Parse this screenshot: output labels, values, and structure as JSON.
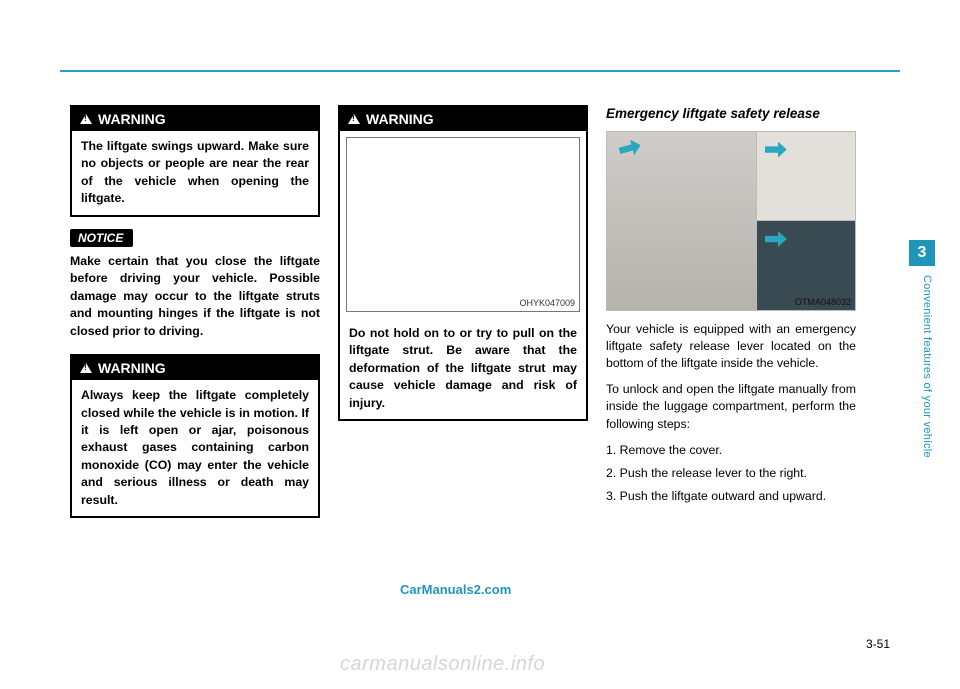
{
  "hr_color": "#29a0c4",
  "side_tab": {
    "number": "3",
    "bg": "#1f96b8"
  },
  "side_text": "Convenient features of your vehicle",
  "page_number": "3-51",
  "watermark1": "CarManuals2.com",
  "watermark2": "carmanualsonline.info",
  "col1": {
    "warning1": {
      "label": "WARNING",
      "text": "The liftgate swings upward. Make sure no objects or people are near the rear of the vehicle when opening the liftgate."
    },
    "notice_label": "NOTICE",
    "notice_text": "Make certain that you close the liftgate before driving your vehicle. Possible damage may occur to the  liftgate struts and mounting hinges if the liftgate  is not closed prior to driving.",
    "warning2": {
      "label": "WARNING",
      "text": "Always keep the liftgate completely closed while the vehicle is in motion. If it is left open or ajar, poisonous exhaust gases containing carbon monoxide (CO) may enter the vehicle and serious illness or death may result."
    }
  },
  "col2": {
    "warning": {
      "label": "WARNING",
      "image_caption": "OHYK047009",
      "text": "Do not hold on to or try to pull on the liftgate strut. Be aware that the deformation of the liftgate strut may cause vehicle damage and risk of injury."
    }
  },
  "col3": {
    "heading": "Emergency liftgate safety release",
    "image_caption": "OTMA048032",
    "p1": "Your vehicle is equipped with an emergency liftgate safety release lever located on the bottom of the liftgate inside the vehicle.",
    "p2": "To unlock and open the liftgate manually from inside the luggage compartment, perform the following steps:",
    "step1": "1. Remove the cover.",
    "step2": "2. Push the release lever to the right.",
    "step3": "3. Push the liftgate outward and upward."
  }
}
